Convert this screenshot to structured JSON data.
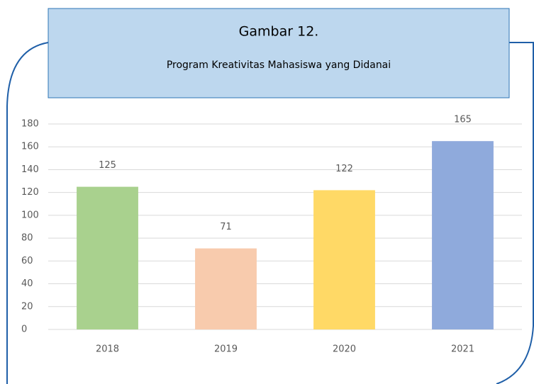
{
  "chart_data": {
    "type": "bar",
    "title": "Gambar 12.",
    "subtitle": "Program Kreativitas Mahasiswa yang Didanai",
    "categories": [
      "2018",
      "2019",
      "2020",
      "2021"
    ],
    "values": [
      125,
      71,
      122,
      165
    ],
    "colors": [
      "#a9d18e",
      "#f8cbad",
      "#ffd966",
      "#8faadc"
    ],
    "ylim": [
      0,
      180
    ],
    "yticks": [
      0,
      20,
      40,
      60,
      80,
      100,
      120,
      140,
      160,
      180
    ],
    "grid": true
  }
}
